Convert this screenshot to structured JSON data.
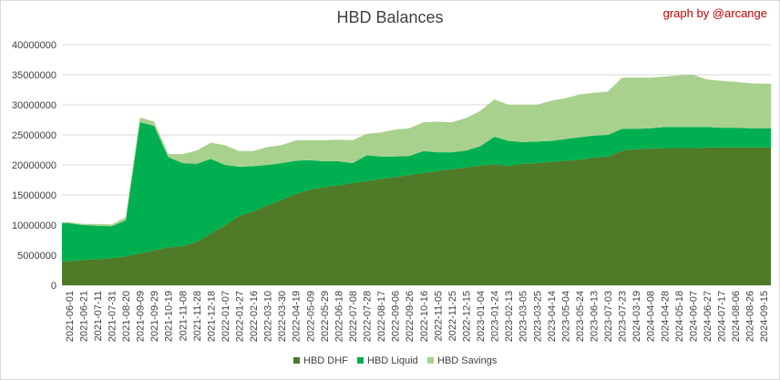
{
  "chart_data": {
    "type": "area",
    "stacked": true,
    "title": "HBD Balances",
    "credit": "graph by @arcange",
    "xlabel": "",
    "ylabel": "",
    "ylim": [
      0,
      40000000
    ],
    "y_ticks": [
      0,
      5000000,
      10000000,
      15000000,
      20000000,
      25000000,
      30000000,
      35000000,
      40000000
    ],
    "y_tick_labels": [
      "0",
      "5000000",
      "10000000",
      "15000000",
      "20000000",
      "25000000",
      "30000000",
      "35000000",
      "40000000"
    ],
    "grid": "horizontal",
    "legend_position": "bottom",
    "x_tick_labels": [
      "2021-06-01",
      "2021-06-21",
      "2021-07-11",
      "2021-07-31",
      "2021-08-20",
      "2021-09-09",
      "2021-09-29",
      "2021-10-19",
      "2021-11-08",
      "2021-11-28",
      "2021-12-18",
      "2022-01-07",
      "2022-01-27",
      "2022-02-16",
      "2022-03-10",
      "2022-03-30",
      "2022-04-19",
      "2022-05-09",
      "2022-05-29",
      "2022-06-18",
      "2022-07-08",
      "2022-07-28",
      "2022-08-17",
      "2022-09-06",
      "2022-09-26",
      "2022-10-16",
      "2022-11-05",
      "2022-11-25",
      "2022-12-15",
      "2023-01-04",
      "2023-01-24",
      "2023-02-13",
      "2023-03-05",
      "2023-03-25",
      "2023-04-14",
      "2023-05-04",
      "2023-05-24",
      "2023-06-13",
      "2023-07-03",
      "2023-07-23",
      "2024-03-19",
      "2024-04-08",
      "2024-04-28",
      "2024-05-18",
      "2024-06-07",
      "2024-06-27",
      "2024-07-17",
      "2024-08-06",
      "2024-08-26",
      "2024-09-15"
    ],
    "series": [
      {
        "name": "HBD DHF",
        "color": "#4f7a28",
        "values": [
          4000000,
          4200000,
          4300000,
          4500000,
          4800000,
          5300000,
          5800000,
          6300000,
          6500000,
          7200000,
          8600000,
          10000000,
          11500000,
          12300000,
          13300000,
          14200000,
          15200000,
          15900000,
          16300000,
          16600000,
          17000000,
          17300000,
          17700000,
          18000000,
          18300000,
          18700000,
          19000000,
          19300000,
          19600000,
          19900000,
          20100000,
          19800000,
          20200000,
          20300000,
          20500000,
          20700000,
          20900000,
          21200000,
          21400000,
          22400000,
          22600000,
          22700000,
          22800000,
          22800000,
          22800000,
          22900000,
          22900000,
          22900000,
          22900000,
          22900000
        ]
      },
      {
        "name": "HBD Liquid",
        "color": "#00b050",
        "values": [
          6300000,
          5800000,
          5600000,
          5300000,
          6000000,
          21800000,
          20700000,
          15000000,
          13800000,
          13000000,
          12400000,
          10000000,
          8200000,
          7500000,
          6700000,
          6100000,
          5500000,
          4900000,
          4300000,
          4000000,
          3300000,
          4300000,
          3700000,
          3400000,
          3200000,
          3600000,
          3100000,
          2800000,
          2800000,
          3200000,
          4600000,
          4200000,
          3600000,
          3600000,
          3500000,
          3600000,
          3700000,
          3700000,
          3600000,
          3600000,
          3400000,
          3400000,
          3500000,
          3500000,
          3500000,
          3400000,
          3300000,
          3300000,
          3200000,
          3200000
        ]
      },
      {
        "name": "HBD Savings",
        "color": "#a9d18e",
        "values": [
          200000,
          200000,
          300000,
          300000,
          500000,
          800000,
          700000,
          500000,
          1500000,
          2200000,
          2700000,
          3300000,
          2600000,
          2500000,
          3000000,
          3000000,
          3400000,
          3300000,
          3500000,
          3600000,
          3800000,
          3600000,
          4000000,
          4500000,
          4600000,
          4800000,
          5100000,
          5000000,
          5400000,
          5900000,
          6200000,
          6000000,
          6200000,
          6100000,
          6700000,
          6800000,
          7100000,
          7100000,
          7200000,
          8500000,
          8500000,
          8400000,
          8400000,
          8600000,
          8700000,
          7900000,
          7800000,
          7600000,
          7500000,
          7400000
        ]
      }
    ]
  }
}
